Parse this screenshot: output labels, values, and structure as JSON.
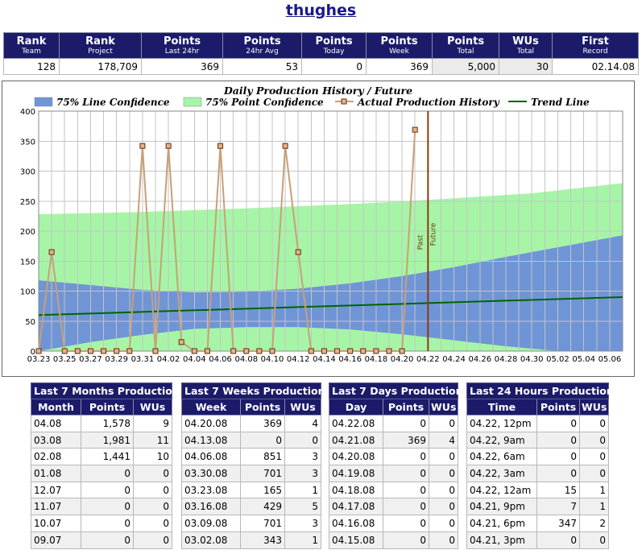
{
  "page": {
    "title": "thughes"
  },
  "stats": {
    "headers": [
      {
        "main": "Rank",
        "sub": "Team"
      },
      {
        "main": "Rank",
        "sub": "Project"
      },
      {
        "main": "Points",
        "sub": "Last 24hr"
      },
      {
        "main": "Points",
        "sub": "24hr Avg"
      },
      {
        "main": "Points",
        "sub": "Today"
      },
      {
        "main": "Points",
        "sub": "Week"
      },
      {
        "main": "Points",
        "sub": "Total"
      },
      {
        "main": "WUs",
        "sub": "Total"
      },
      {
        "main": "First",
        "sub": "Record"
      }
    ],
    "values": [
      "128",
      "178,709",
      "369",
      "53",
      "0",
      "369",
      "5,000",
      "30",
      "02.14.08"
    ]
  },
  "chart_data": {
    "type": "line",
    "title": "Daily Production History / Future",
    "legend": [
      {
        "name": "75% Line Confidence",
        "color": "#6f95d6",
        "kind": "area"
      },
      {
        "name": "75% Point Confidence",
        "color": "#a6f5a6",
        "kind": "area"
      },
      {
        "name": "Actual Production History",
        "color": "#c8a078",
        "kind": "line-marker"
      },
      {
        "name": "Trend Line",
        "color": "#006400",
        "kind": "line"
      }
    ],
    "legend_position": "top",
    "grid": true,
    "ylim": [
      0,
      400
    ],
    "yticks": [
      0,
      50,
      100,
      150,
      200,
      250,
      300,
      350,
      400
    ],
    "xticks": [
      "03.23",
      "03.25",
      "03.27",
      "03.29",
      "03.31",
      "04.02",
      "04.04",
      "04.06",
      "04.08",
      "04.10",
      "04.12",
      "04.14",
      "04.16",
      "04.18",
      "04.20",
      "04.22",
      "04.24",
      "04.26",
      "04.28",
      "04.30",
      "05.02",
      "05.04",
      "05.06"
    ],
    "x_start": "03.23",
    "x_end": "05.07",
    "past_label": "Past",
    "future_label": "Future",
    "divider_date": "04.22",
    "actual": {
      "dates": [
        "03.23",
        "03.24",
        "03.25",
        "03.26",
        "03.27",
        "03.28",
        "03.29",
        "03.30",
        "03.31",
        "04.01",
        "04.02",
        "04.03",
        "04.04",
        "04.05",
        "04.06",
        "04.07",
        "04.08",
        "04.09",
        "04.10",
        "04.11",
        "04.12",
        "04.13",
        "04.14",
        "04.15",
        "04.16",
        "04.17",
        "04.18",
        "04.19",
        "04.20",
        "04.21"
      ],
      "values": [
        0,
        165,
        0,
        0,
        0,
        0,
        0,
        0,
        342,
        0,
        342,
        15,
        0,
        0,
        342,
        0,
        0,
        0,
        0,
        342,
        165,
        0,
        0,
        0,
        0,
        0,
        0,
        0,
        0,
        369
      ]
    },
    "trend": {
      "dates": [
        "03.23",
        "05.07"
      ],
      "values": [
        60,
        90
      ]
    },
    "point_confidence": {
      "dates": [
        "03.23",
        "03.31",
        "04.08",
        "04.16",
        "04.22",
        "04.30",
        "05.07"
      ],
      "upper": [
        228,
        232,
        238,
        245,
        252,
        263,
        280
      ],
      "lower": [
        0,
        0,
        0,
        0,
        0,
        0,
        0
      ]
    },
    "line_confidence": {
      "dates": [
        "03.23",
        "03.27",
        "03.31",
        "04.04",
        "04.08",
        "04.12",
        "04.16",
        "04.20",
        "04.24",
        "04.28",
        "05.02",
        "05.07"
      ],
      "upper": [
        118,
        110,
        102,
        98,
        99,
        104,
        113,
        125,
        140,
        157,
        173,
        193
      ],
      "lower": [
        0,
        15,
        27,
        37,
        40,
        40,
        36,
        28,
        18,
        8,
        0,
        0
      ]
    }
  },
  "tables": [
    {
      "caption": "Last 7 Months Production",
      "columns": [
        "Month",
        "Points",
        "WUs"
      ],
      "rows": [
        [
          "04.08",
          "1,578",
          "9"
        ],
        [
          "03.08",
          "1,981",
          "11"
        ],
        [
          "02.08",
          "1,441",
          "10"
        ],
        [
          "01.08",
          "0",
          "0"
        ],
        [
          "12.07",
          "0",
          "0"
        ],
        [
          "11.07",
          "0",
          "0"
        ],
        [
          "10.07",
          "0",
          "0"
        ],
        [
          "09.07",
          "0",
          "0"
        ]
      ]
    },
    {
      "caption": "Last 7 Weeks Production",
      "columns": [
        "Week",
        "Points",
        "WUs"
      ],
      "rows": [
        [
          "04.20.08",
          "369",
          "4"
        ],
        [
          "04.13.08",
          "0",
          "0"
        ],
        [
          "04.06.08",
          "851",
          "3"
        ],
        [
          "03.30.08",
          "701",
          "3"
        ],
        [
          "03.23.08",
          "165",
          "1"
        ],
        [
          "03.16.08",
          "429",
          "5"
        ],
        [
          "03.09.08",
          "701",
          "3"
        ],
        [
          "03.02.08",
          "343",
          "1"
        ]
      ]
    },
    {
      "caption": "Last 7 Days Production",
      "columns": [
        "Day",
        "Points",
        "WUs"
      ],
      "rows": [
        [
          "04.22.08",
          "0",
          "0"
        ],
        [
          "04.21.08",
          "369",
          "4"
        ],
        [
          "04.20.08",
          "0",
          "0"
        ],
        [
          "04.19.08",
          "0",
          "0"
        ],
        [
          "04.18.08",
          "0",
          "0"
        ],
        [
          "04.17.08",
          "0",
          "0"
        ],
        [
          "04.16.08",
          "0",
          "0"
        ],
        [
          "04.15.08",
          "0",
          "0"
        ]
      ]
    },
    {
      "caption": "Last 24 Hours Production",
      "columns": [
        "Time",
        "Points",
        "WUs"
      ],
      "rows": [
        [
          "04.22, 12pm",
          "0",
          "0"
        ],
        [
          "04.22, 9am",
          "0",
          "0"
        ],
        [
          "04.22, 6am",
          "0",
          "0"
        ],
        [
          "04.22, 3am",
          "0",
          "0"
        ],
        [
          "04.22, 12am",
          "15",
          "1"
        ],
        [
          "04.21, 9pm",
          "7",
          "1"
        ],
        [
          "04.21, 6pm",
          "347",
          "2"
        ],
        [
          "04.21, 3pm",
          "0",
          "0"
        ]
      ]
    }
  ]
}
